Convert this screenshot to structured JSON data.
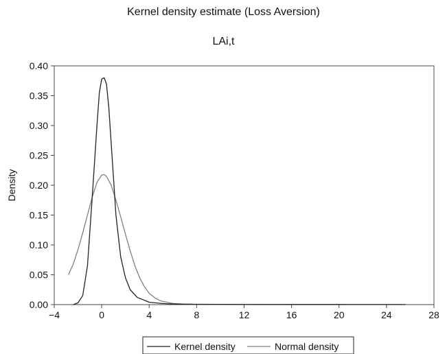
{
  "chart_data": {
    "type": "line",
    "title": "Kernel density estimate (Loss Aversion)",
    "subtitle": "LAi,t",
    "xlabel": "",
    "ylabel": "Density",
    "xlim": [
      -4,
      28
    ],
    "ylim": [
      0,
      0.4
    ],
    "x_ticks": [
      -4,
      0,
      4,
      8,
      12,
      16,
      20,
      24,
      28
    ],
    "y_ticks": [
      0.0,
      0.05,
      0.1,
      0.15,
      0.2,
      0.25,
      0.3,
      0.35,
      0.4
    ],
    "x_tick_labels": [
      "−4",
      "0",
      "4",
      "8",
      "12",
      "16",
      "20",
      "24",
      "28"
    ],
    "y_tick_labels": [
      "0.00",
      "0.05",
      "0.10",
      "0.15",
      "0.20",
      "0.25",
      "0.30",
      "0.35",
      "0.40"
    ],
    "grid": false,
    "legend_position": "bottom-center",
    "series": [
      {
        "name": "Kernel density",
        "color": "#222222",
        "x": [
          -2.4,
          -2.0,
          -1.6,
          -1.2,
          -0.8,
          -0.4,
          -0.2,
          0.0,
          0.2,
          0.4,
          0.6,
          0.8,
          1.2,
          1.6,
          2.0,
          2.4,
          3.0,
          4.0,
          5.0,
          6.0,
          8.0,
          12.0,
          16.0,
          20.0,
          24.0,
          25.6
        ],
        "y": [
          0.0,
          0.003,
          0.015,
          0.065,
          0.18,
          0.3,
          0.355,
          0.378,
          0.38,
          0.37,
          0.33,
          0.27,
          0.15,
          0.08,
          0.045,
          0.025,
          0.012,
          0.004,
          0.002,
          0.001,
          0.0005,
          0.0003,
          0.0002,
          0.0002,
          0.0001,
          0.0001
        ]
      },
      {
        "name": "Normal density",
        "color": "#808080",
        "x": [
          -2.8,
          -2.4,
          -2.0,
          -1.6,
          -1.2,
          -0.8,
          -0.4,
          0.0,
          0.2,
          0.4,
          0.8,
          1.2,
          1.6,
          2.0,
          2.4,
          2.8,
          3.2,
          3.6,
          4.0,
          4.5,
          5.0,
          6.0,
          7.0,
          8.0,
          10.0,
          14.0,
          20.0,
          25.6
        ],
        "y": [
          0.05,
          0.068,
          0.092,
          0.12,
          0.15,
          0.18,
          0.205,
          0.217,
          0.218,
          0.215,
          0.2,
          0.175,
          0.147,
          0.118,
          0.09,
          0.065,
          0.045,
          0.03,
          0.019,
          0.011,
          0.006,
          0.002,
          0.0007,
          0.0002,
          0.0001,
          0.0,
          0.0,
          0.0
        ]
      }
    ]
  }
}
